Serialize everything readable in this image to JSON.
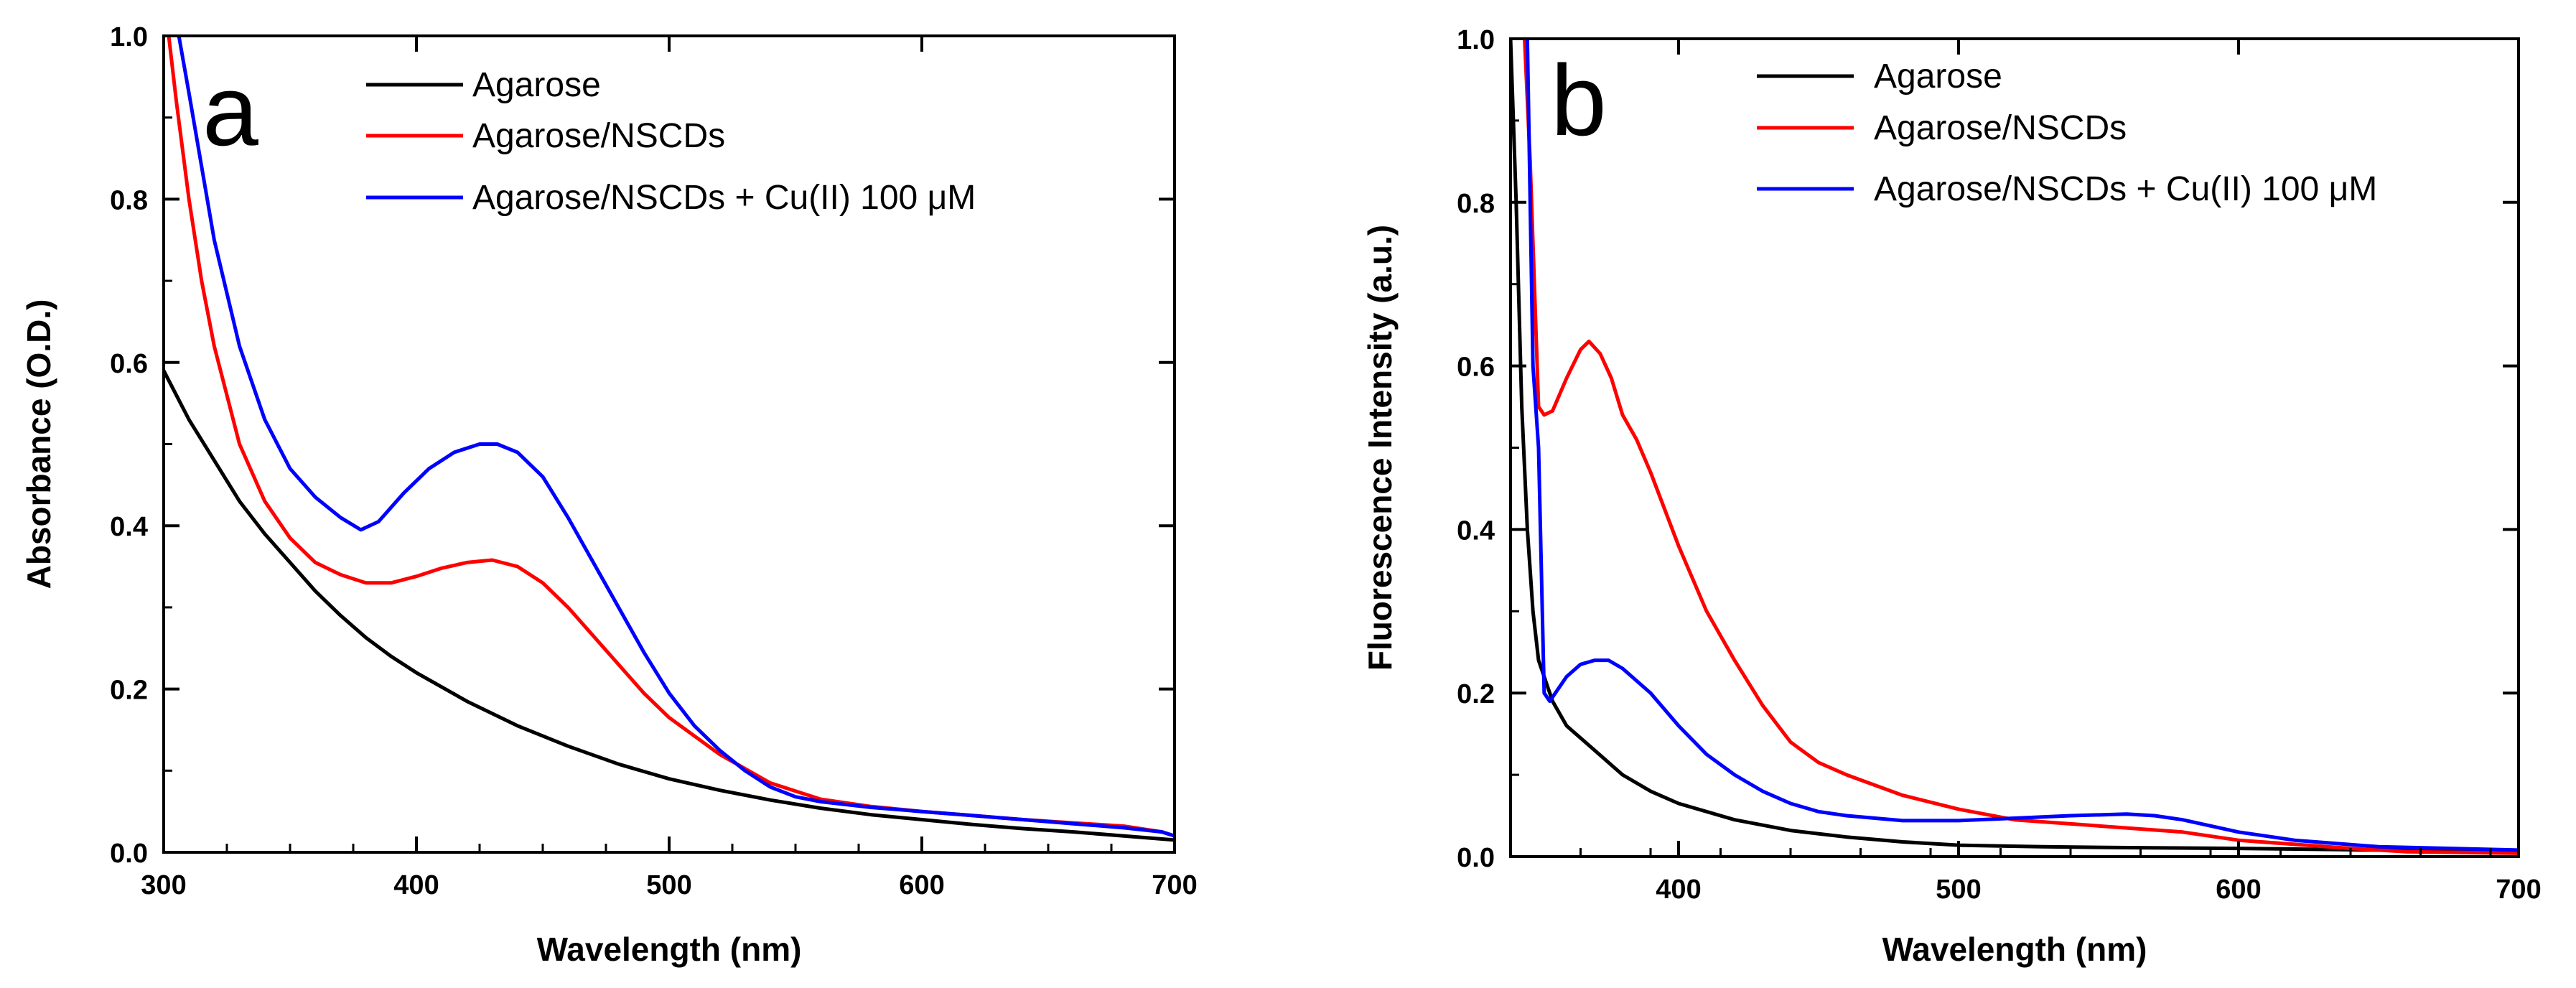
{
  "chart_data": [
    {
      "panel": "a",
      "type": "line",
      "xlabel": "Wavelength (nm)",
      "ylabel": "Absorbance (O.D.)",
      "xlim": [
        300,
        700
      ],
      "ylim": [
        0,
        1.0
      ],
      "xticks": [
        300,
        400,
        500,
        600,
        700
      ],
      "yticks": [
        0.0,
        0.2,
        0.4,
        0.6,
        0.8,
        1.0
      ],
      "xtick_labels": [
        "300",
        "400",
        "500",
        "600",
        "700"
      ],
      "ytick_labels": [
        "0.0",
        "0.2",
        "0.4",
        "0.6",
        "0.8",
        "1.0"
      ],
      "grid": false,
      "legend_position": "top-right",
      "series": [
        {
          "name": "Agarose",
          "color": "#000000",
          "x": [
            300,
            310,
            320,
            330,
            340,
            350,
            360,
            370,
            380,
            390,
            400,
            420,
            440,
            460,
            480,
            500,
            520,
            540,
            560,
            580,
            600,
            620,
            640,
            660,
            680,
            700
          ],
          "y": [
            0.59,
            0.53,
            0.48,
            0.43,
            0.39,
            0.355,
            0.32,
            0.29,
            0.263,
            0.24,
            0.22,
            0.185,
            0.155,
            0.13,
            0.108,
            0.09,
            0.076,
            0.064,
            0.054,
            0.046,
            0.04,
            0.034,
            0.029,
            0.025,
            0.02,
            0.015
          ]
        },
        {
          "name": "Agarose/NSCDs",
          "color": "#ff0000",
          "x": [
            302,
            305,
            310,
            315,
            320,
            330,
            340,
            350,
            360,
            370,
            380,
            390,
            400,
            410,
            420,
            430,
            440,
            450,
            460,
            470,
            480,
            490,
            500,
            520,
            540,
            560,
            580,
            600,
            620,
            640,
            660,
            680,
            695,
            700
          ],
          "y": [
            1.0,
            0.92,
            0.8,
            0.7,
            0.62,
            0.5,
            0.43,
            0.385,
            0.355,
            0.34,
            0.33,
            0.33,
            0.338,
            0.348,
            0.355,
            0.358,
            0.35,
            0.33,
            0.3,
            0.265,
            0.23,
            0.195,
            0.165,
            0.12,
            0.085,
            0.065,
            0.056,
            0.05,
            0.045,
            0.04,
            0.036,
            0.032,
            0.025,
            0.02
          ]
        },
        {
          "name": "Agarose/NSCDs  +  Cu(II) 100 μM",
          "color": "#0000ff",
          "x": [
            306,
            310,
            315,
            320,
            330,
            340,
            350,
            360,
            370,
            378,
            385,
            395,
            405,
            415,
            425,
            432,
            440,
            450,
            460,
            470,
            480,
            490,
            500,
            510,
            520,
            530,
            540,
            550,
            560,
            580,
            600,
            620,
            640,
            660,
            680,
            695,
            700
          ],
          "y": [
            1.0,
            0.93,
            0.84,
            0.75,
            0.62,
            0.53,
            0.47,
            0.435,
            0.41,
            0.395,
            0.405,
            0.44,
            0.47,
            0.49,
            0.5,
            0.5,
            0.49,
            0.46,
            0.41,
            0.355,
            0.3,
            0.245,
            0.195,
            0.155,
            0.125,
            0.1,
            0.08,
            0.068,
            0.062,
            0.055,
            0.05,
            0.045,
            0.04,
            0.035,
            0.03,
            0.025,
            0.02
          ]
        }
      ]
    },
    {
      "panel": "b",
      "type": "line",
      "xlabel": "Wavelength (nm)",
      "ylabel": "Fluorescence Intensity (a.u.)",
      "xlim": [
        340,
        700
      ],
      "ylim": [
        0,
        1.0
      ],
      "xticks": [
        400,
        500,
        600,
        700
      ],
      "yticks": [
        0.0,
        0.2,
        0.4,
        0.6,
        0.8,
        1.0
      ],
      "xtick_labels": [
        "400",
        "500",
        "600",
        "700"
      ],
      "ytick_labels": [
        "0.0",
        "0.2",
        "0.4",
        "0.6",
        "0.8",
        "1.0"
      ],
      "grid": false,
      "legend_position": "top-right",
      "series": [
        {
          "name": "Agarose",
          "color": "#000000",
          "x": [
            340,
            342,
            344,
            346,
            348,
            350,
            355,
            360,
            370,
            380,
            390,
            400,
            420,
            440,
            460,
            480,
            500,
            530,
            560,
            600,
            650,
            700
          ],
          "y": [
            1.0,
            0.8,
            0.55,
            0.4,
            0.3,
            0.24,
            0.19,
            0.16,
            0.13,
            0.1,
            0.08,
            0.065,
            0.045,
            0.032,
            0.024,
            0.018,
            0.014,
            0.012,
            0.011,
            0.01,
            0.008,
            0.006
          ]
        },
        {
          "name": "Agarose/NSCDs",
          "color": "#ff0000",
          "x": [
            345,
            347,
            349,
            350,
            352,
            355,
            360,
            365,
            368,
            372,
            376,
            380,
            385,
            390,
            400,
            410,
            420,
            430,
            440,
            450,
            460,
            480,
            500,
            520,
            540,
            560,
            580,
            600,
            620,
            640,
            660,
            700
          ],
          "y": [
            1.0,
            0.85,
            0.65,
            0.55,
            0.54,
            0.545,
            0.585,
            0.62,
            0.63,
            0.615,
            0.585,
            0.54,
            0.51,
            0.47,
            0.38,
            0.3,
            0.24,
            0.185,
            0.14,
            0.115,
            0.1,
            0.075,
            0.058,
            0.045,
            0.04,
            0.035,
            0.03,
            0.02,
            0.015,
            0.01,
            0.006,
            0.004
          ]
        },
        {
          "name": "Agarose/NSCDs + Cu(II) 100 μM",
          "color": "#0000ff",
          "x": [
            346,
            347,
            348,
            350,
            352,
            354,
            356,
            360,
            365,
            370,
            375,
            380,
            390,
            400,
            410,
            420,
            430,
            440,
            450,
            460,
            480,
            500,
            520,
            540,
            560,
            570,
            580,
            600,
            620,
            650,
            700
          ],
          "y": [
            1.0,
            0.8,
            0.6,
            0.5,
            0.2,
            0.19,
            0.2,
            0.22,
            0.235,
            0.24,
            0.24,
            0.23,
            0.2,
            0.16,
            0.125,
            0.1,
            0.08,
            0.065,
            0.055,
            0.05,
            0.044,
            0.044,
            0.047,
            0.05,
            0.052,
            0.05,
            0.045,
            0.03,
            0.02,
            0.012,
            0.008
          ]
        }
      ]
    }
  ]
}
